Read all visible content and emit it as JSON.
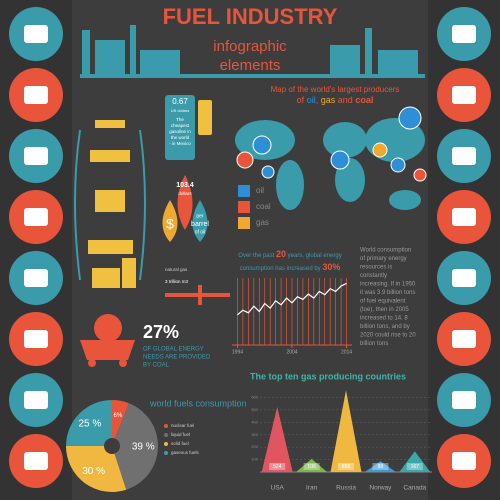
{
  "header": {
    "title": "FUEL INDUSTRY",
    "subtitle": "infographic",
    "subtitle2": "elements"
  },
  "map": {
    "line1": "Map of the world's largest producers",
    "parts": [
      "of",
      "oil",
      ",",
      "gas",
      "and",
      "coal"
    ],
    "legend": [
      {
        "name": "oil",
        "color": "#2f8fd6"
      },
      {
        "name": "coal",
        "color": "#e8553a"
      },
      {
        "name": "gas",
        "color": "#f0a830"
      }
    ]
  },
  "gasoline": {
    "price": "0.67",
    "unit": "US dollars",
    "lines": [
      "The",
      "cheapest",
      "gasoline in",
      "the world",
      "- in Mexico"
    ]
  },
  "barrel": {
    "price": "103.4",
    "unit": "dollars",
    "per": "per",
    "barrel": "barrel",
    "of": "of oil"
  },
  "gas_note": {
    "lines": [
      "natural gas",
      "3 trillion m3"
    ]
  },
  "coal": {
    "percent": "27%",
    "lines": [
      "OF GLOBAL ENERGY",
      "NEEDS ARE PROVIDED",
      "BY COAL"
    ]
  },
  "energy": {
    "a": "Over the past",
    "b": "20",
    "c": "years, global energy",
    "d": "consumption has increased by",
    "e": "30%"
  },
  "consumption": {
    "lines": [
      "World consumption",
      "of primary energy",
      "resources is",
      "constantly",
      "increasing. If in 1950",
      "it was 3.9 billion tons",
      "of fuel equivalent",
      "(toe), then in 2005",
      "increased to 14. 8",
      "billion tons, and by",
      "2020 could rise to 20",
      "billion tons"
    ]
  },
  "chart_data": [
    {
      "type": "line",
      "x": [
        1994,
        1995,
        1996,
        1997,
        1998,
        1999,
        2000,
        2001,
        2002,
        2003,
        2004,
        2005,
        2006,
        2007,
        2008,
        2009,
        2010,
        2011,
        2012,
        2013,
        2014
      ],
      "values": [
        45,
        52,
        48,
        58,
        50,
        62,
        55,
        66,
        60,
        70,
        63,
        72,
        68,
        76,
        70,
        80,
        75,
        84,
        80,
        88,
        92
      ],
      "xlim": [
        1993,
        2015
      ],
      "xticks": [
        1994,
        2004,
        2014
      ],
      "ylim": [
        0,
        100
      ],
      "color": "#ffffff"
    },
    {
      "type": "pie",
      "title": "world fuels consumption",
      "categories": [
        "nuclear fuel",
        "liquid fuel",
        "solid fuel",
        "gaseous fuels"
      ],
      "values": [
        6,
        39,
        30,
        25
      ],
      "value_labels": [
        "6%",
        "39 %",
        "30 %",
        "25 %"
      ],
      "colors": [
        "#e8553a",
        "#707070",
        "#f0b840",
        "#3a9bab"
      ]
    },
    {
      "type": "bar",
      "title": "The top ten gas producing countries",
      "categories": [
        "USA",
        "Iran",
        "Russia",
        "Norway",
        "Canada"
      ],
      "values": [
        524,
        106,
        658,
        88,
        167
      ],
      "colors": [
        "#e05560",
        "#7ab648",
        "#f0b840",
        "#3a9bd6",
        "#3aa8a8"
      ],
      "ylim": [
        0,
        700
      ],
      "yticks": [
        100,
        200,
        300,
        400,
        500,
        600
      ]
    }
  ]
}
